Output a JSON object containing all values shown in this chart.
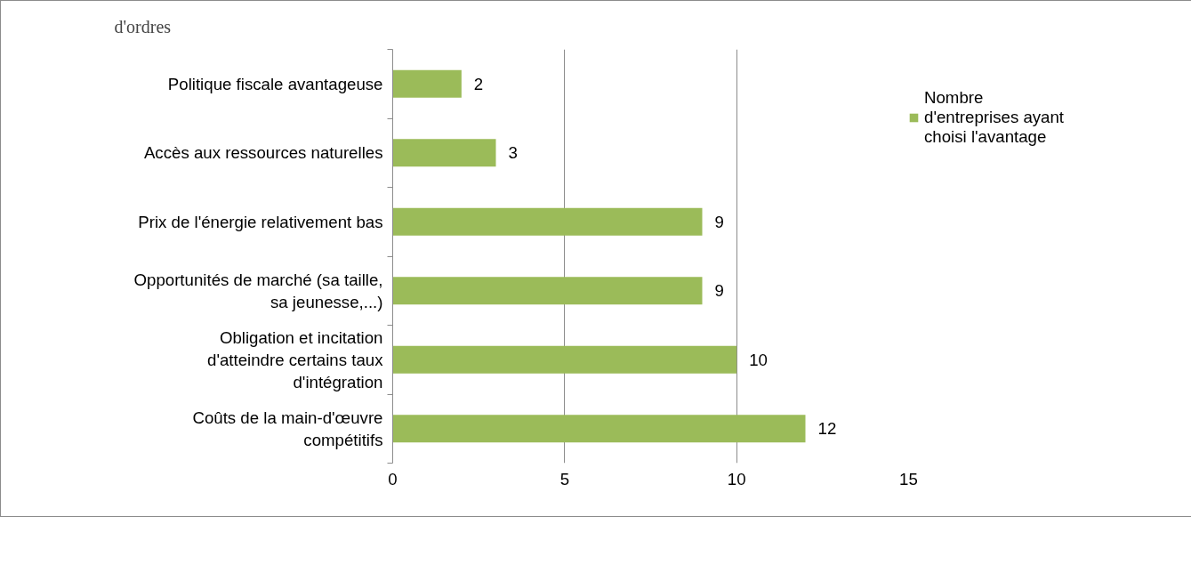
{
  "chart_data": {
    "type": "bar",
    "orientation": "horizontal",
    "categories": [
      "Politique fiscale avantageuse",
      "Accès aux ressources naturelles",
      "Prix de l'énergie relativement bas",
      "Opportunités de marché (sa taille, sa jeunesse,...)",
      "Obligation et incitation d'atteindre certains taux d'intégration",
      "Coûts de la main-d'œuvre compétitifs"
    ],
    "series": [
      {
        "name": "Nombre d'entreprises ayant choisi l'avantage",
        "color": "#9bbb59",
        "values": [
          2,
          3,
          9,
          9,
          10,
          12
        ]
      }
    ],
    "xlim": [
      0,
      15
    ],
    "xticks": [
      0,
      5,
      10,
      15
    ],
    "grid": "x",
    "legend": "right",
    "data_labels": true,
    "annotations": [
      "d'ordres"
    ]
  }
}
